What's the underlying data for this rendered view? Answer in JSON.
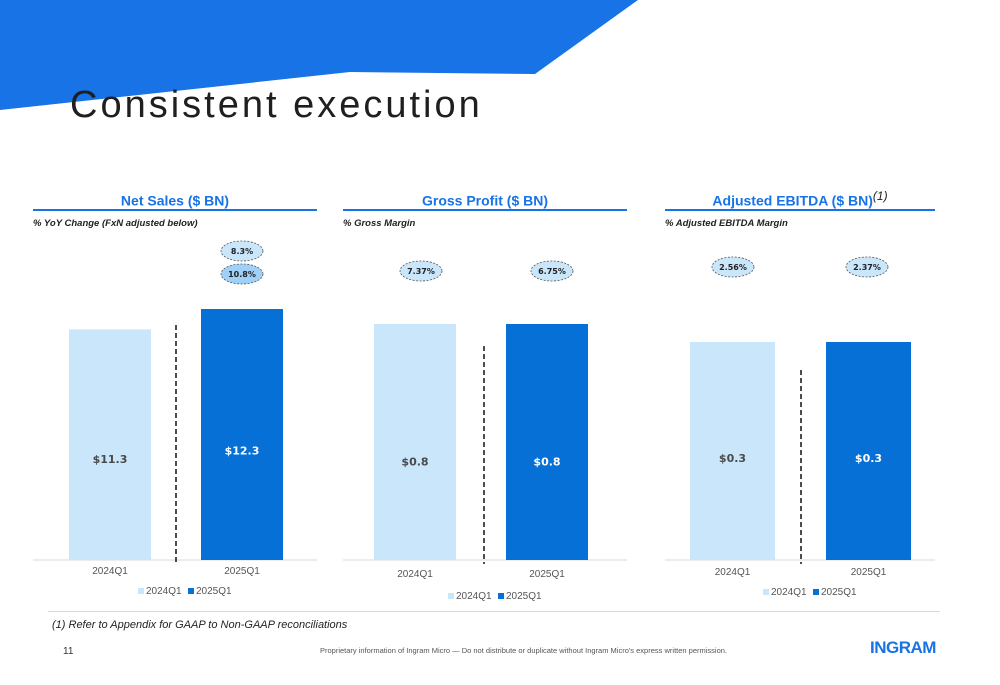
{
  "page": {
    "title": "Consistent execution",
    "footnote": "(1) Refer to Appendix for GAAP to Non-GAAP reconciliations",
    "page_number": "11",
    "legal": "Proprietary information of Ingram Micro — Do not distribute or duplicate without Ingram Micro's express written permission.",
    "logo_text": "INGRAM",
    "colors": {
      "brand": "#1773e6",
      "series_2024": "#c9e6fb",
      "series_2025": "#0670d6",
      "bubble_light": "#c9e6fb",
      "bubble_mid": "#9fd0f7"
    }
  },
  "chart_data": [
    {
      "type": "bar",
      "title": "Net Sales ($ BN)",
      "title_note": "",
      "subtitle": "% YoY Change (FxN adjusted below)",
      "categories": [
        "2024Q1",
        "2025Q1"
      ],
      "values": [
        11.3,
        12.3
      ],
      "value_labels": [
        "$11.3",
        "$12.3"
      ],
      "ylim": [
        0,
        12.3
      ],
      "legend": [
        "2024Q1",
        "2025Q1"
      ],
      "legend_position": "bottom",
      "annotations": [
        {
          "category": "2025Q1",
          "text": "8.3%",
          "style": "light"
        },
        {
          "category": "2025Q1",
          "text": "10.8%",
          "style": "mid"
        }
      ]
    },
    {
      "type": "bar",
      "title": "Gross Profit ($ BN)",
      "title_note": "",
      "subtitle": "% Gross Margin",
      "categories": [
        "2024Q1",
        "2025Q1"
      ],
      "values": [
        0.8,
        0.8
      ],
      "value_labels": [
        "$0.8",
        "$0.8"
      ],
      "ylim": [
        0,
        0.8
      ],
      "legend": [
        "2024Q1",
        "2025Q1"
      ],
      "legend_position": "bottom",
      "annotations": [
        {
          "category": "2024Q1",
          "text": "7.37%",
          "style": "light"
        },
        {
          "category": "2025Q1",
          "text": "6.75%",
          "style": "light"
        }
      ]
    },
    {
      "type": "bar",
      "title": "Adjusted EBITDA ($ BN)",
      "title_note": "(1)",
      "subtitle": "% Adjusted EBITDA Margin",
      "categories": [
        "2024Q1",
        "2025Q1"
      ],
      "values": [
        0.3,
        0.3
      ],
      "value_labels": [
        "$0.3",
        "$0.3"
      ],
      "ylim": [
        0,
        0.3
      ],
      "legend": [
        "2024Q1",
        "2025Q1"
      ],
      "legend_position": "bottom",
      "annotations": [
        {
          "category": "2024Q1",
          "text": "2.56%",
          "style": "light"
        },
        {
          "category": "2025Q1",
          "text": "2.37%",
          "style": "light"
        }
      ]
    }
  ]
}
